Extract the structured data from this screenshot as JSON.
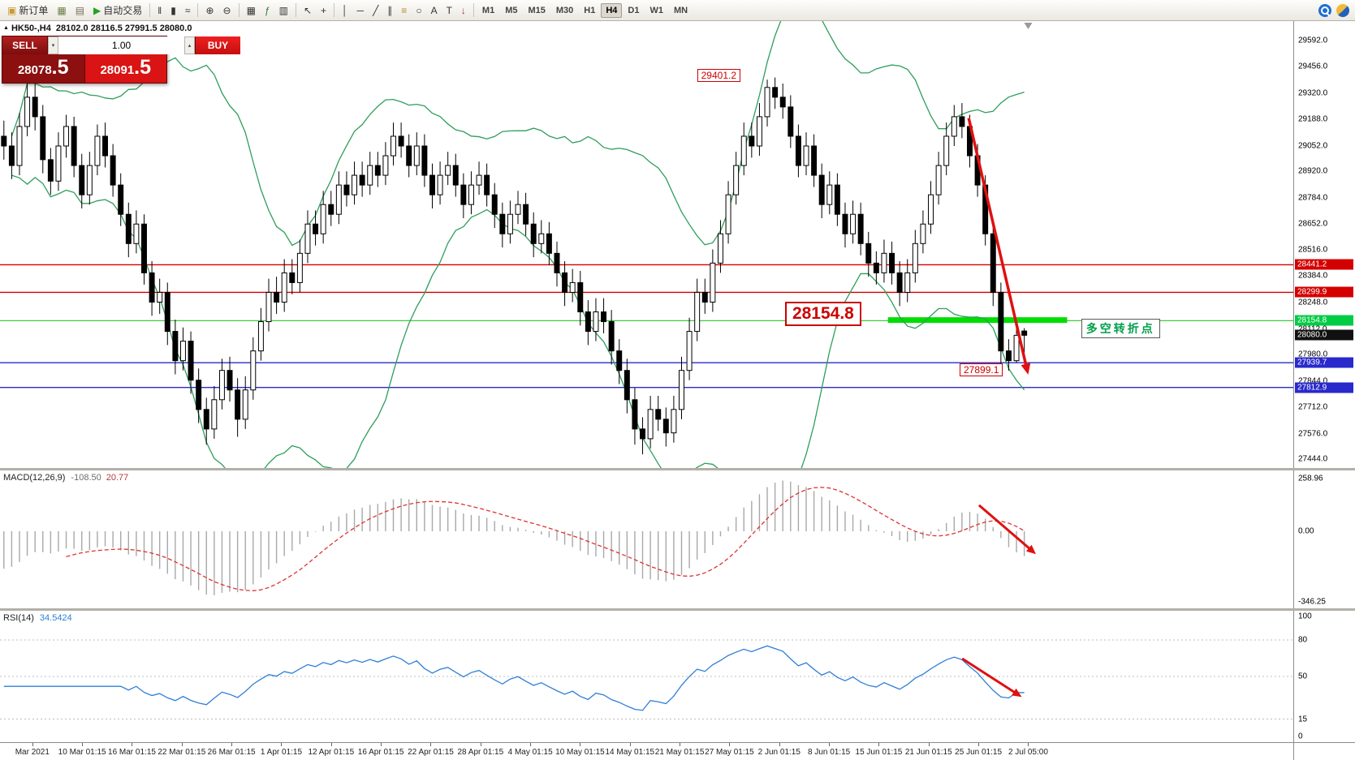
{
  "accent_colors": {
    "bollinger": "#2e9e5b",
    "arrow_red": "#e01010",
    "macd_hist": "#a8a8a8",
    "macd_signal": "#dd3333",
    "rsi_line": "#2f7ed8"
  },
  "toolbar": {
    "items": [
      {
        "type": "button",
        "name": "new-order-button",
        "glyph": "▣",
        "glyph_color": "#c99a2e",
        "label": "新订单"
      },
      {
        "type": "icon",
        "name": "chart-windows-icon",
        "glyph": "▦",
        "glyph_color": "#6b7f46"
      },
      {
        "type": "icon",
        "name": "profiles-icon",
        "glyph": "▤",
        "glyph_color": "#7a6f5a"
      },
      {
        "type": "button",
        "name": "auto-trading-button",
        "glyph": "▶",
        "glyph_color": "#1fa51f",
        "label": "自动交易"
      },
      {
        "type": "sep"
      },
      {
        "type": "icon",
        "name": "bar-chart-button",
        "glyph": "‖"
      },
      {
        "type": "icon",
        "name": "candlestick-chart-button",
        "glyph": "▮"
      },
      {
        "type": "icon",
        "name": "line-chart-button",
        "glyph": "≈"
      },
      {
        "type": "sep"
      },
      {
        "type": "icon",
        "name": "zoom-in-button",
        "glyph": "⊕"
      },
      {
        "type": "icon",
        "name": "zoom-out-button",
        "glyph": "⊖"
      },
      {
        "type": "sep"
      },
      {
        "type": "icon",
        "name": "tile-windows-button",
        "glyph": "▦"
      },
      {
        "type": "icon",
        "name": "indicators-button",
        "glyph": "ƒ",
        "glyph_color": "#2e7d32"
      },
      {
        "type": "icon",
        "name": "templates-button",
        "glyph": "▥"
      },
      {
        "type": "sep"
      },
      {
        "type": "icon",
        "name": "cursor-button",
        "glyph": "↖"
      },
      {
        "type": "icon",
        "name": "crosshair-button",
        "glyph": "+"
      },
      {
        "type": "sep"
      },
      {
        "type": "icon",
        "name": "vertical-line-button",
        "glyph": "│"
      },
      {
        "type": "icon",
        "name": "horizontal-line-button",
        "glyph": "─"
      },
      {
        "type": "icon",
        "name": "trendline-button",
        "glyph": "╱"
      },
      {
        "type": "icon",
        "name": "channel-button",
        "glyph": "∥"
      },
      {
        "type": "icon",
        "name": "fibonacci-button",
        "glyph": "≡",
        "glyph_color": "#b08a2e"
      },
      {
        "type": "icon",
        "name": "shapes-button",
        "glyph": "○"
      },
      {
        "type": "icon",
        "name": "text-button",
        "glyph": "A"
      },
      {
        "type": "icon",
        "name": "label-button",
        "glyph": "T"
      },
      {
        "type": "icon",
        "name": "arrows-button",
        "glyph": "↓",
        "glyph_color": "#a33333"
      },
      {
        "type": "sep"
      },
      {
        "type": "tf",
        "name": "timeframe-m1",
        "label": "M1"
      },
      {
        "type": "tf",
        "name": "timeframe-m5",
        "label": "M5"
      },
      {
        "type": "tf",
        "name": "timeframe-m15",
        "label": "M15"
      },
      {
        "type": "tf",
        "name": "timeframe-m30",
        "label": "M30"
      },
      {
        "type": "tf",
        "name": "timeframe-h1",
        "label": "H1"
      },
      {
        "type": "tf",
        "name": "timeframe-h4",
        "label": "H4",
        "active": true
      },
      {
        "type": "tf",
        "name": "timeframe-d1",
        "label": "D1"
      },
      {
        "type": "tf",
        "name": "timeframe-w1",
        "label": "W1"
      },
      {
        "type": "tf",
        "name": "timeframe-mn",
        "label": "MN"
      }
    ]
  },
  "title": {
    "marker": "▲",
    "symbol": "HK50-,H4",
    "ohlc": "28102.0 28116.5 27991.5 28080.0"
  },
  "trade_widget": {
    "sell_label": "SELL",
    "buy_label": "BUY",
    "volume": "1.00",
    "vol_down_glyph": "▾",
    "vol_up_glyph": "▴",
    "sell_price_main": "28078",
    "sell_price_big": ".5",
    "buy_price_main": "28091",
    "buy_price_big": ".5"
  },
  "indicators": {
    "macd": {
      "name": "MACD(12,26,9)",
      "value_main": "-108.50",
      "value_signal": "20.77"
    },
    "rsi": {
      "name": "RSI(14)",
      "value": "34.5424",
      "levels": [
        80,
        50,
        15
      ]
    }
  },
  "time_axis": {
    "labels": [
      "Mar 2021",
      "10 Mar 01:15",
      "16 Mar 01:15",
      "22 Mar 01:15",
      "26 Mar 01:15",
      "1 Apr 01:15",
      "12 Apr 01:15",
      "16 Apr 01:15",
      "22 Apr 01:15",
      "28 Apr 01:15",
      "4 May 01:15",
      "10 May 01:15",
      "14 May 01:15",
      "21 May 01:15",
      "27 May 01:15",
      "2 Jun 01:15",
      "8 Jun 01:15",
      "15 Jun 01:15",
      "21 Jun 01:15",
      "25 Jun 01:15",
      "2 Jul 05:00"
    ]
  },
  "chart_data": {
    "type": "candlestick",
    "symbol": "HK50-",
    "period": "H4",
    "price_range": [
      27400,
      29690
    ],
    "candle_area_frac": 0.795,
    "axis_ticks": [
      29592,
      29456,
      29320,
      29188,
      29052,
      28920,
      28784,
      28652,
      28516,
      28384,
      28248,
      28112,
      27980,
      27844,
      27712,
      27576,
      27444
    ],
    "bollinger": {
      "period": 20,
      "deviation": 2
    },
    "candles": [
      [
        29100,
        29180,
        28980,
        29050
      ],
      [
        29050,
        29120,
        28880,
        28950
      ],
      [
        28950,
        29220,
        28900,
        29150
      ],
      [
        29150,
        29380,
        29100,
        29300
      ],
      [
        29300,
        29370,
        29130,
        29200
      ],
      [
        29200,
        29260,
        28910,
        28980
      ],
      [
        28980,
        29040,
        28800,
        28870
      ],
      [
        28870,
        29120,
        28820,
        29050
      ],
      [
        29050,
        29210,
        28990,
        29150
      ],
      [
        29150,
        29200,
        28890,
        28950
      ],
      [
        28950,
        29010,
        28730,
        28800
      ],
      [
        28800,
        29020,
        28750,
        28950
      ],
      [
        28950,
        29160,
        28900,
        29100
      ],
      [
        29100,
        29170,
        28940,
        29000
      ],
      [
        29000,
        29060,
        28790,
        28850
      ],
      [
        28850,
        28910,
        28640,
        28700
      ],
      [
        28700,
        28760,
        28480,
        28550
      ],
      [
        28550,
        28720,
        28500,
        28650
      ],
      [
        28650,
        28700,
        28340,
        28400
      ],
      [
        28400,
        28460,
        28180,
        28250
      ],
      [
        28250,
        28370,
        28190,
        28300
      ],
      [
        28300,
        28350,
        28030,
        28100
      ],
      [
        28100,
        28160,
        27880,
        27950
      ],
      [
        27950,
        28120,
        27900,
        28050
      ],
      [
        28050,
        28100,
        27780,
        27850
      ],
      [
        27850,
        27910,
        27630,
        27700
      ],
      [
        27700,
        27760,
        27520,
        27600
      ],
      [
        27600,
        27820,
        27550,
        27750
      ],
      [
        27750,
        27960,
        27700,
        27900
      ],
      [
        27900,
        27970,
        27740,
        27800
      ],
      [
        27800,
        27860,
        27560,
        27650
      ],
      [
        27650,
        27870,
        27600,
        27800
      ],
      [
        27800,
        28070,
        27750,
        28000
      ],
      [
        28000,
        28220,
        27950,
        28150
      ],
      [
        28150,
        28370,
        28100,
        28300
      ],
      [
        28300,
        28380,
        28190,
        28250
      ],
      [
        28250,
        28470,
        28200,
        28400
      ],
      [
        28400,
        28470,
        28290,
        28350
      ],
      [
        28350,
        28570,
        28300,
        28500
      ],
      [
        28500,
        28720,
        28450,
        28650
      ],
      [
        28650,
        28720,
        28540,
        28600
      ],
      [
        28600,
        28820,
        28550,
        28750
      ],
      [
        28750,
        28820,
        28640,
        28700
      ],
      [
        28700,
        28920,
        28650,
        28850
      ],
      [
        28850,
        28920,
        28740,
        28800
      ],
      [
        28800,
        28970,
        28750,
        28900
      ],
      [
        28900,
        28970,
        28790,
        28850
      ],
      [
        28850,
        29020,
        28800,
        28950
      ],
      [
        28950,
        29020,
        28840,
        28900
      ],
      [
        28900,
        29070,
        28850,
        29000
      ],
      [
        29000,
        29170,
        28950,
        29100
      ],
      [
        29100,
        29170,
        28990,
        29050
      ],
      [
        29050,
        29110,
        28890,
        28950
      ],
      [
        28950,
        29120,
        28900,
        29050
      ],
      [
        29050,
        29110,
        28840,
        28900
      ],
      [
        28900,
        28960,
        28730,
        28800
      ],
      [
        28800,
        28970,
        28750,
        28900
      ],
      [
        28900,
        29020,
        28850,
        28950
      ],
      [
        28950,
        29010,
        28790,
        28850
      ],
      [
        28850,
        28910,
        28680,
        28750
      ],
      [
        28750,
        28920,
        28700,
        28850
      ],
      [
        28850,
        28970,
        28800,
        28900
      ],
      [
        28900,
        28960,
        28740,
        28800
      ],
      [
        28800,
        28860,
        28630,
        28700
      ],
      [
        28700,
        28760,
        28530,
        28600
      ],
      [
        28600,
        28770,
        28550,
        28700
      ],
      [
        28700,
        28820,
        28650,
        28750
      ],
      [
        28750,
        28810,
        28590,
        28650
      ],
      [
        28650,
        28710,
        28480,
        28550
      ],
      [
        28550,
        28670,
        28500,
        28600
      ],
      [
        28600,
        28660,
        28440,
        28500
      ],
      [
        28500,
        28560,
        28330,
        28400
      ],
      [
        28400,
        28460,
        28230,
        28300
      ],
      [
        28300,
        28420,
        28250,
        28350
      ],
      [
        28350,
        28410,
        28130,
        28200
      ],
      [
        28200,
        28260,
        28030,
        28100
      ],
      [
        28100,
        28270,
        28050,
        28200
      ],
      [
        28200,
        28270,
        28090,
        28150
      ],
      [
        28150,
        28210,
        27930,
        28000
      ],
      [
        28000,
        28060,
        27830,
        27900
      ],
      [
        27900,
        27960,
        27680,
        27750
      ],
      [
        27750,
        27810,
        27520,
        27600
      ],
      [
        27600,
        27660,
        27470,
        27550
      ],
      [
        27550,
        27770,
        27500,
        27700
      ],
      [
        27700,
        27770,
        27590,
        27650
      ],
      [
        27650,
        27710,
        27510,
        27580
      ],
      [
        27580,
        27770,
        27530,
        27700
      ],
      [
        27700,
        27970,
        27650,
        27900
      ],
      [
        27900,
        28170,
        27850,
        28100
      ],
      [
        28100,
        28370,
        28050,
        28300
      ],
      [
        28300,
        28370,
        28190,
        28250
      ],
      [
        28250,
        28520,
        28200,
        28450
      ],
      [
        28450,
        28670,
        28400,
        28600
      ],
      [
        28600,
        28870,
        28550,
        28800
      ],
      [
        28800,
        29020,
        28750,
        28950
      ],
      [
        28950,
        29170,
        28900,
        29100
      ],
      [
        29100,
        29170,
        28990,
        29050
      ],
      [
        29050,
        29270,
        29000,
        29200
      ],
      [
        29200,
        29390,
        29150,
        29350
      ],
      [
        29350,
        29401,
        29240,
        29300
      ],
      [
        29300,
        29370,
        29190,
        29250
      ],
      [
        29250,
        29310,
        29040,
        29100
      ],
      [
        29100,
        29160,
        28890,
        28950
      ],
      [
        28950,
        29120,
        28900,
        29050
      ],
      [
        29050,
        29110,
        28840,
        28900
      ],
      [
        28900,
        28960,
        28680,
        28750
      ],
      [
        28750,
        28920,
        28700,
        28850
      ],
      [
        28850,
        28910,
        28640,
        28700
      ],
      [
        28700,
        28760,
        28530,
        28600
      ],
      [
        28600,
        28770,
        28550,
        28700
      ],
      [
        28700,
        28760,
        28490,
        28550
      ],
      [
        28550,
        28610,
        28380,
        28450
      ],
      [
        28450,
        28510,
        28340,
        28400
      ],
      [
        28400,
        28570,
        28350,
        28500
      ],
      [
        28500,
        28560,
        28340,
        28400
      ],
      [
        28400,
        28460,
        28230,
        28300
      ],
      [
        28300,
        28470,
        28250,
        28400
      ],
      [
        28400,
        28620,
        28350,
        28550
      ],
      [
        28550,
        28720,
        28500,
        28650
      ],
      [
        28650,
        28870,
        28600,
        28800
      ],
      [
        28800,
        29020,
        28750,
        28950
      ],
      [
        28950,
        29170,
        28900,
        29100
      ],
      [
        29100,
        29260,
        29050,
        29200
      ],
      [
        29200,
        29270,
        29090,
        29150
      ],
      [
        29150,
        29210,
        28940,
        29000
      ],
      [
        29000,
        29060,
        28790,
        28850
      ],
      [
        28850,
        28900,
        28540,
        28600
      ],
      [
        28600,
        28650,
        28230,
        28300
      ],
      [
        28300,
        28350,
        27930,
        28000
      ],
      [
        28000,
        28060,
        27899,
        27950
      ],
      [
        27950,
        28117,
        27940,
        28080
      ],
      [
        28102,
        28116.5,
        27991.5,
        28080
      ]
    ],
    "hlines": [
      {
        "price": 28441.2,
        "color": "#d40000",
        "width": 1.4
      },
      {
        "price": 28299.9,
        "color": "#d40000",
        "width": 1.4
      },
      {
        "price": 28154.8,
        "color": "#3dcc3d",
        "width": 1.2
      },
      {
        "price": 27939.7,
        "color": "#2929cc",
        "width": 1.4
      },
      {
        "price": 27812.9,
        "color": "#2929cc",
        "width": 1.4
      }
    ],
    "price_tags": [
      {
        "price": 28441.2,
        "text": "28441.2",
        "bg": "#d40000",
        "fg": "#ffffff"
      },
      {
        "price": 28299.9,
        "text": "28299.9",
        "bg": "#d40000",
        "fg": "#ffffff"
      },
      {
        "price": 28154.8,
        "text": "28154.8",
        "bg": "#00cc44",
        "fg": "#ffffff"
      },
      {
        "price": 28080.0,
        "text": "28080.0",
        "bg": "#111111",
        "fg": "#ffffff"
      },
      {
        "price": 27939.7,
        "text": "27939.7",
        "bg": "#2929cc",
        "fg": "#ffffff"
      },
      {
        "price": 27812.9,
        "text": "27812.9",
        "bg": "#2929cc",
        "fg": "#ffffff"
      }
    ],
    "green_segment": {
      "price": 28158,
      "from_index": 114,
      "to_index": 137,
      "color": "#00dd00",
      "thickness": 7
    },
    "macd_scale": {
      "labels": [
        {
          "text": "258.96",
          "value": 258.96
        },
        {
          "text": "0.00",
          "value": 0
        },
        {
          "text": "-346.25",
          "value": -346.25
        }
      ],
      "range": [
        -380,
        300
      ]
    },
    "rsi_scale": {
      "labels": [
        {
          "text": "100",
          "value": 100
        },
        {
          "text": "80",
          "value": 80
        },
        {
          "text": "50",
          "value": 50
        },
        {
          "text": "15",
          "value": 15
        },
        {
          "text": "0",
          "value": 0
        }
      ]
    },
    "annotations": {
      "peak_label": {
        "text": "29401.2",
        "x_frac": 0.539,
        "price": 29410
      },
      "level_label": {
        "text": "28154.8",
        "x_frac": 0.607,
        "price": 28190
      },
      "low_label": {
        "text": "27899.1",
        "x_frac": 0.742,
        "price": 27904
      },
      "turning_label": {
        "text": "多空转折点",
        "x_frac": 0.836,
        "price": 28116
      },
      "arrows": {
        "main": {
          "x1f": 0.749,
          "y1f": 0.217,
          "x2f": 0.795,
          "y2f": 0.791
        },
        "macd": {
          "x1f": 0.757,
          "y1f": 0.252,
          "x2f": 0.801,
          "y2f": 0.607
        },
        "rsi": {
          "x1f": 0.744,
          "y1f": 0.364,
          "x2f": 0.79,
          "y2f": 0.656
        }
      }
    }
  }
}
